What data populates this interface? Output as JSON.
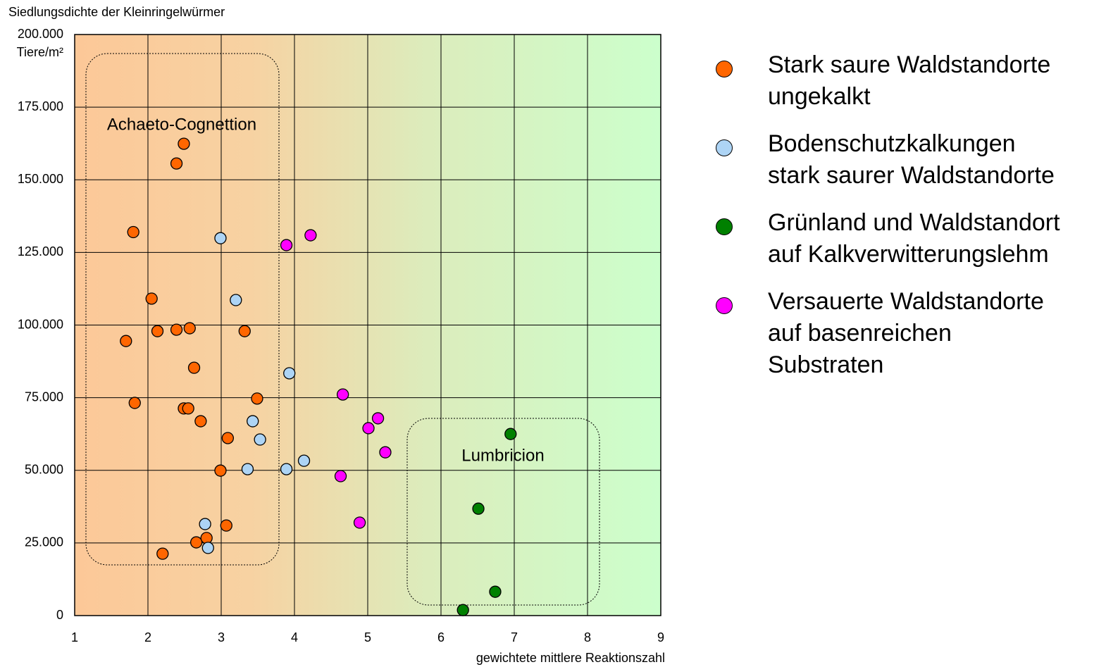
{
  "chart_data": {
    "type": "scatter",
    "y_axis_label": "Siedlungsdichte der Kleinringelwürmer",
    "y_unit": "Tiere/m²",
    "x_axis_label": "gewichtete mittlere Reaktionszahl",
    "annotations": [
      "Achaeto-Cognettion",
      "Lumbricion"
    ],
    "xlim": [
      1,
      9
    ],
    "xticks": [
      1,
      2,
      3,
      4,
      5,
      6,
      7,
      8,
      9
    ],
    "ylim": [
      0,
      200000
    ],
    "yticks": [
      0,
      {
        "value": 25000,
        "label": "25.000"
      },
      {
        "value": 50000,
        "label": "50.000"
      },
      {
        "value": 75000,
        "label": "75.000"
      },
      {
        "value": 100000,
        "label": "100.000"
      },
      {
        "value": 125000,
        "label": "125.000"
      },
      {
        "value": 150000,
        "label": "150.000"
      },
      {
        "value": 175000,
        "label": "175.000"
      },
      {
        "value": 200000,
        "label": "200.000"
      }
    ],
    "grid": true,
    "series": [
      {
        "name": "Stark saure Waldstandorte ungekalkt",
        "color": "#ff6600",
        "x": [
          1.8,
          2.49,
          2.39,
          2.05,
          1.7,
          2.13,
          2.39,
          2.57,
          3.32,
          2.63,
          1.82,
          2.49,
          2.55,
          3.49,
          2.72,
          3.09,
          2.99,
          3.07,
          2.8,
          2.66,
          2.2
        ],
        "values": [
          132000,
          162400,
          155600,
          109100,
          94500,
          97900,
          98400,
          98900,
          97900,
          85300,
          73200,
          71300,
          71300,
          74700,
          66900,
          61100,
          49900,
          31000,
          26700,
          25200,
          21300
        ]
      },
      {
        "name": "Bodenschutzkalkungen stark saurer Waldstandorte",
        "color": "#add4f5",
        "x": [
          2.99,
          3.2,
          3.93,
          3.43,
          3.53,
          3.36,
          3.89,
          4.13,
          2.78,
          2.82
        ],
        "values": [
          129900,
          108600,
          83400,
          66900,
          60600,
          50400,
          50400,
          53300,
          31500,
          23300
        ]
      },
      {
        "name": "Grünland und Waldstandort auf Kalkverwitterungslehm",
        "color": "#008000",
        "x": [
          6.95,
          6.51,
          6.74,
          6.3
        ],
        "values": [
          62500,
          36800,
          8200,
          1900
        ]
      },
      {
        "name": "Versauerte Waldstandorte auf basenreichen Substraten",
        "color": "#ff00ff",
        "x": [
          3.89,
          4.22,
          4.66,
          5.14,
          5.01,
          5.24,
          4.63,
          4.89
        ],
        "values": [
          127500,
          130900,
          76100,
          67900,
          64500,
          56200,
          48000,
          32000
        ]
      }
    ]
  }
}
